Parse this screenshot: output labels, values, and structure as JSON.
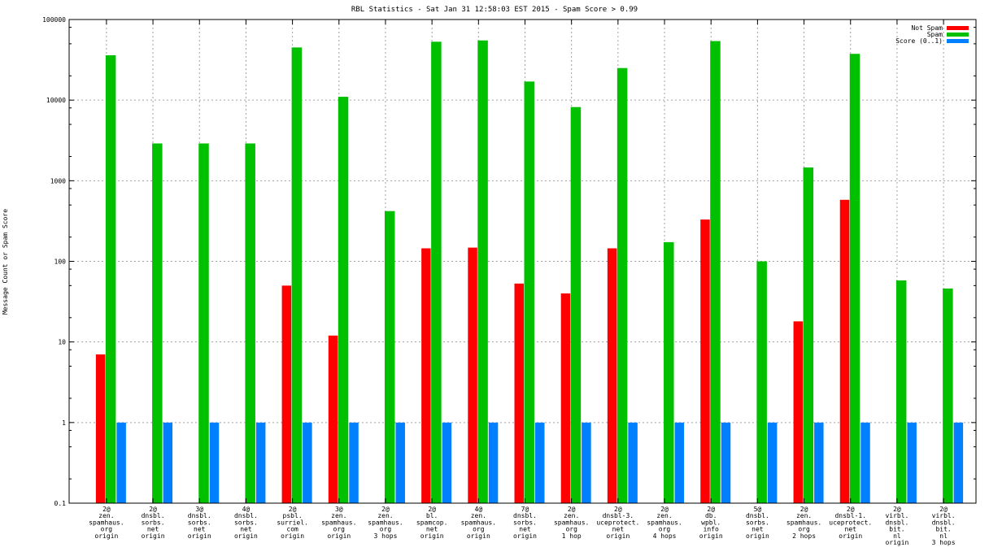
{
  "chart_data": {
    "type": "bar",
    "title": "RBL Statistics - Sat Jan 31 12:58:03 EST 2015 - Spam Score > 0.99",
    "xlabel": "",
    "ylabel": "Message Count or Spam Score",
    "yscale": "log",
    "ylim": [
      0.1,
      100000
    ],
    "yticks": [
      "0.1",
      "1",
      "10",
      "100",
      "1000",
      "10000",
      "100000"
    ],
    "ytick_values": [
      0.1,
      1,
      10,
      100,
      1000,
      10000,
      100000
    ],
    "grid": true,
    "legend_position": "top-right",
    "categories": [
      [
        "2@",
        "zen.",
        "spamhaus.",
        "org",
        "origin"
      ],
      [
        "2@",
        "dnsbl.",
        "sorbs.",
        "net",
        "origin"
      ],
      [
        "3@",
        "dnsbl.",
        "sorbs.",
        "net",
        "origin"
      ],
      [
        "4@",
        "dnsbl.",
        "sorbs.",
        "net",
        "origin"
      ],
      [
        "2@",
        "psbl.",
        "surriel.",
        "com",
        "origin"
      ],
      [
        "3@",
        "zen.",
        "spamhaus.",
        "org",
        "origin"
      ],
      [
        "2@",
        "zen.",
        "spamhaus.",
        "org",
        "3 hops"
      ],
      [
        "2@",
        "bl.",
        "spamcop.",
        "net",
        "origin"
      ],
      [
        "4@",
        "zen.",
        "spamhaus.",
        "org",
        "origin"
      ],
      [
        "7@",
        "dnsbl.",
        "sorbs.",
        "net",
        "origin"
      ],
      [
        "2@",
        "zen.",
        "spamhaus.",
        "org",
        "1 hop"
      ],
      [
        "2@",
        "dnsbl-3.",
        "uceprotect.",
        "net",
        "origin"
      ],
      [
        "2@",
        "zen.",
        "spamhaus.",
        "org",
        "4 hops"
      ],
      [
        "2@",
        "db.",
        "wpbl.",
        "info",
        "origin"
      ],
      [
        "5@",
        "dnsbl.",
        "sorbs.",
        "net",
        "origin"
      ],
      [
        "2@",
        "zen.",
        "spamhaus.",
        "org",
        "2 hops"
      ],
      [
        "2@",
        "dnsbl-1.",
        "uceprotect.",
        "net",
        "origin"
      ],
      [
        "2@",
        "virbl.",
        "dnsbl.",
        "bit.",
        "nl",
        "origin"
      ],
      [
        "2@",
        "virbl.",
        "dnsbl.",
        "bit.",
        "nl",
        "3 hops"
      ]
    ],
    "series": [
      {
        "name": "Not Spam",
        "color": "#ff0000",
        "values": [
          7,
          0,
          0,
          0,
          50,
          12,
          0,
          145,
          148,
          53,
          40,
          145,
          0,
          330,
          0,
          18,
          580,
          0,
          0
        ]
      },
      {
        "name": "Spam",
        "color": "#00c000",
        "values": [
          36000,
          2900,
          2900,
          2900,
          45000,
          11000,
          420,
          53000,
          55000,
          17000,
          8200,
          25000,
          173,
          54000,
          100,
          1460,
          37500,
          58,
          46
        ]
      },
      {
        "name": "Score (0..1)",
        "color": "#0080ff",
        "values": [
          1,
          1,
          1,
          1,
          1,
          1,
          1,
          1,
          1,
          1,
          1,
          1,
          1,
          1,
          1,
          1,
          1,
          1,
          1
        ]
      }
    ]
  }
}
